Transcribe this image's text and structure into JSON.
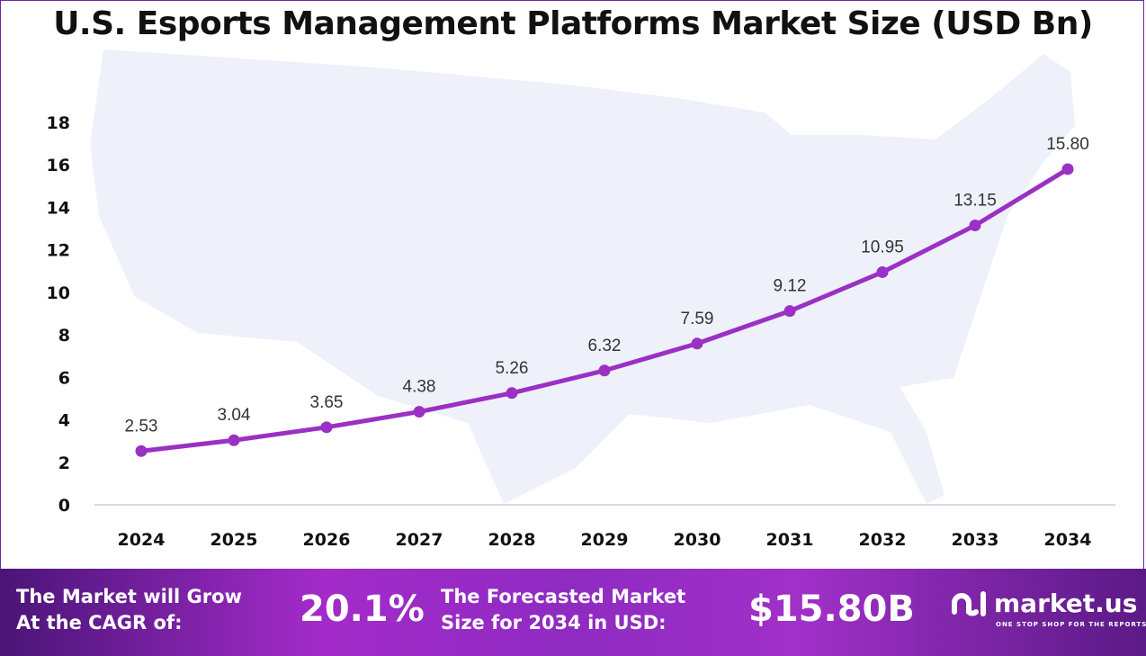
{
  "chart_data": {
    "type": "line",
    "title": "U.S. Esports Management Platforms Market Size (USD Bn)",
    "categories": [
      "2024",
      "2025",
      "2026",
      "2027",
      "2028",
      "2029",
      "2030",
      "2031",
      "2032",
      "2033",
      "2034"
    ],
    "values": [
      2.53,
      3.04,
      3.65,
      4.38,
      5.26,
      6.32,
      7.59,
      9.12,
      10.95,
      13.15,
      15.8
    ],
    "data_labels": [
      "2.53",
      "3.04",
      "3.65",
      "4.38",
      "5.26",
      "6.32",
      "7.59",
      "9.12",
      "10.95",
      "13.15",
      "15.80"
    ],
    "yticks": [
      "0",
      "2",
      "4",
      "6",
      "8",
      "10",
      "12",
      "14",
      "16",
      "18"
    ],
    "ylim": [
      0,
      18
    ],
    "grid": false,
    "line_color": "#9b30c4",
    "background_image": "us-map-silhouette"
  },
  "footer": {
    "cagr_label": [
      "The Market will Grow",
      "At the CAGR of:"
    ],
    "cagr_value": "20.1%",
    "forecast_label": [
      "The Forecasted Market",
      "Size for 2034 in USD:"
    ],
    "forecast_value": "$15.80B",
    "logo_name": "market.us",
    "logo_tagline": "ONE STOP SHOP FOR THE REPORTS"
  }
}
